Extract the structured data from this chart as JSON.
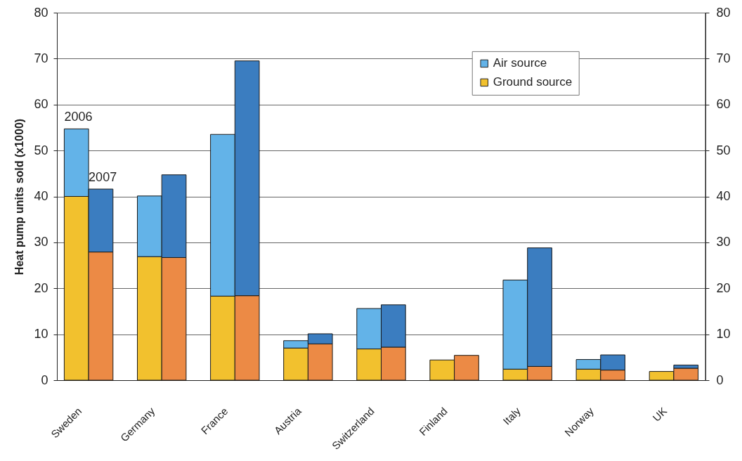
{
  "chart_data": {
    "type": "bar",
    "ylabel": "Heat pump units sold (x1000)",
    "categories": [
      "Sweden",
      null,
      null,
      "Germany",
      null,
      null,
      "France",
      null,
      null,
      "Austria",
      null,
      null,
      "Switzerland",
      null,
      null,
      "Finland",
      null,
      null,
      "Italy",
      null,
      null,
      "Norway",
      null,
      null,
      "UK",
      null
    ],
    "stacked": true,
    "series": [
      {
        "name": "Ground source",
        "color": "#f2c12e",
        "colors": [
          "#f2c12e",
          "#ec8a45",
          null,
          "#f2c12e",
          "#ec8a45",
          null,
          "#f2c12e",
          "#ec8a45",
          null,
          "#f2c12e",
          "#ec8a45",
          null,
          "#f2c12e",
          "#ec8a45",
          null,
          "#f2c12e",
          "#ec8a45",
          null,
          "#f2c12e",
          "#ec8a45",
          null,
          "#f2c12e",
          "#ec8a45",
          null,
          "#f2c12e",
          "#ec8a45"
        ],
        "values": [
          40,
          27.9,
          null,
          26.9,
          26.7,
          null,
          18.3,
          18.4,
          null,
          7.0,
          7.9,
          null,
          6.8,
          7.2,
          null,
          4.4,
          5.4,
          null,
          2.4,
          3.0,
          null,
          2.4,
          2.2,
          null,
          1.9,
          2.6
        ]
      },
      {
        "name": "Air source",
        "color": "#63b3e8",
        "colors": [
          "#63b3e8",
          "#3b7dc0",
          null,
          "#63b3e8",
          "#3b7dc0",
          null,
          "#63b3e8",
          "#3b7dc0",
          null,
          "#63b3e8",
          "#3b7dc0",
          null,
          "#63b3e8",
          "#3b7dc0",
          null,
          "#63b3e8",
          "#3b7dc0",
          null,
          "#63b3e8",
          "#3b7dc0",
          null,
          "#63b3e8",
          "#3b7dc0",
          null,
          "#63b3e8",
          "#3b7dc0"
        ],
        "values": [
          14.7,
          13.7,
          null,
          13.2,
          18.0,
          null,
          35.2,
          51.1,
          null,
          1.6,
          2.2,
          null,
          8.8,
          9.2,
          null,
          null,
          null,
          null,
          19.4,
          25.8,
          null,
          2.1,
          3.3,
          null,
          null,
          0.7
        ]
      }
    ],
    "ylim": [
      0,
      80
    ],
    "yticks": [
      0,
      10,
      20,
      30,
      40,
      50,
      60,
      70,
      80
    ],
    "y2lim": [
      0,
      80
    ],
    "y2ticks": [
      0,
      10,
      20,
      30,
      40,
      50,
      60,
      70,
      80
    ],
    "grid": "y",
    "legend": "top right",
    "annotations": [
      "2006",
      "2007"
    ]
  }
}
